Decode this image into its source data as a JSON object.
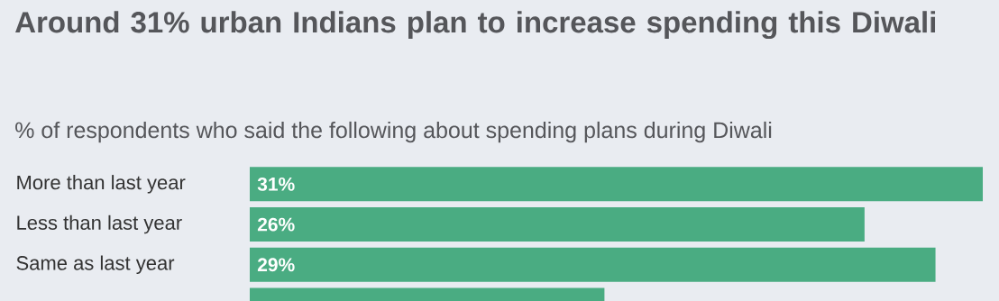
{
  "chart_data": {
    "type": "bar",
    "orientation": "horizontal",
    "title": "Around 31% urban Indians plan to increase spending this Diwali",
    "subtitle": "% of respondents who said the following about spending plans during Diwali",
    "categories": [
      "More than last year",
      "Less than last year",
      "Same as last year",
      null
    ],
    "values": [
      31,
      26,
      29,
      15
    ],
    "value_labels": [
      "31%",
      "26%",
      "29%",
      null
    ],
    "color": "#4aac82"
  }
}
